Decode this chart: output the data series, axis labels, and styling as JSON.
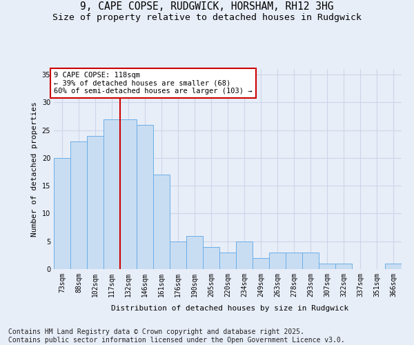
{
  "title_line1": "9, CAPE COPSE, RUDGWICK, HORSHAM, RH12 3HG",
  "title_line2": "Size of property relative to detached houses in Rudgwick",
  "xlabel": "Distribution of detached houses by size in Rudgwick",
  "ylabel": "Number of detached properties",
  "bar_labels": [
    "73sqm",
    "88sqm",
    "102sqm",
    "117sqm",
    "132sqm",
    "146sqm",
    "161sqm",
    "176sqm",
    "190sqm",
    "205sqm",
    "220sqm",
    "234sqm",
    "249sqm",
    "263sqm",
    "278sqm",
    "293sqm",
    "307sqm",
    "322sqm",
    "337sqm",
    "351sqm",
    "366sqm"
  ],
  "bar_values": [
    20,
    23,
    24,
    27,
    27,
    26,
    17,
    5,
    6,
    4,
    3,
    5,
    2,
    3,
    3,
    3,
    1,
    1,
    0,
    0,
    1
  ],
  "bar_color": "#c9ddf2",
  "bar_edge_color": "#6aaee8",
  "vline_color": "#cc0000",
  "annotation_title": "9 CAPE COPSE: 118sqm",
  "annotation_line2": "← 39% of detached houses are smaller (68)",
  "annotation_line3": "60% of semi-detached houses are larger (103) →",
  "annotation_box_color": "#cc0000",
  "annotation_fill": "#ffffff",
  "ylim": [
    0,
    36
  ],
  "yticks": [
    0,
    5,
    10,
    15,
    20,
    25,
    30,
    35
  ],
  "grid_color": "#ccd6e8",
  "background_color": "#e8eef8",
  "footer": "Contains HM Land Registry data © Crown copyright and database right 2025.\nContains public sector information licensed under the Open Government Licence v3.0.",
  "footer_fontsize": 7,
  "title_fontsize": 10.5,
  "subtitle_fontsize": 9.5,
  "label_fontsize": 8,
  "tick_fontsize": 7,
  "ann_fontsize": 7.5
}
